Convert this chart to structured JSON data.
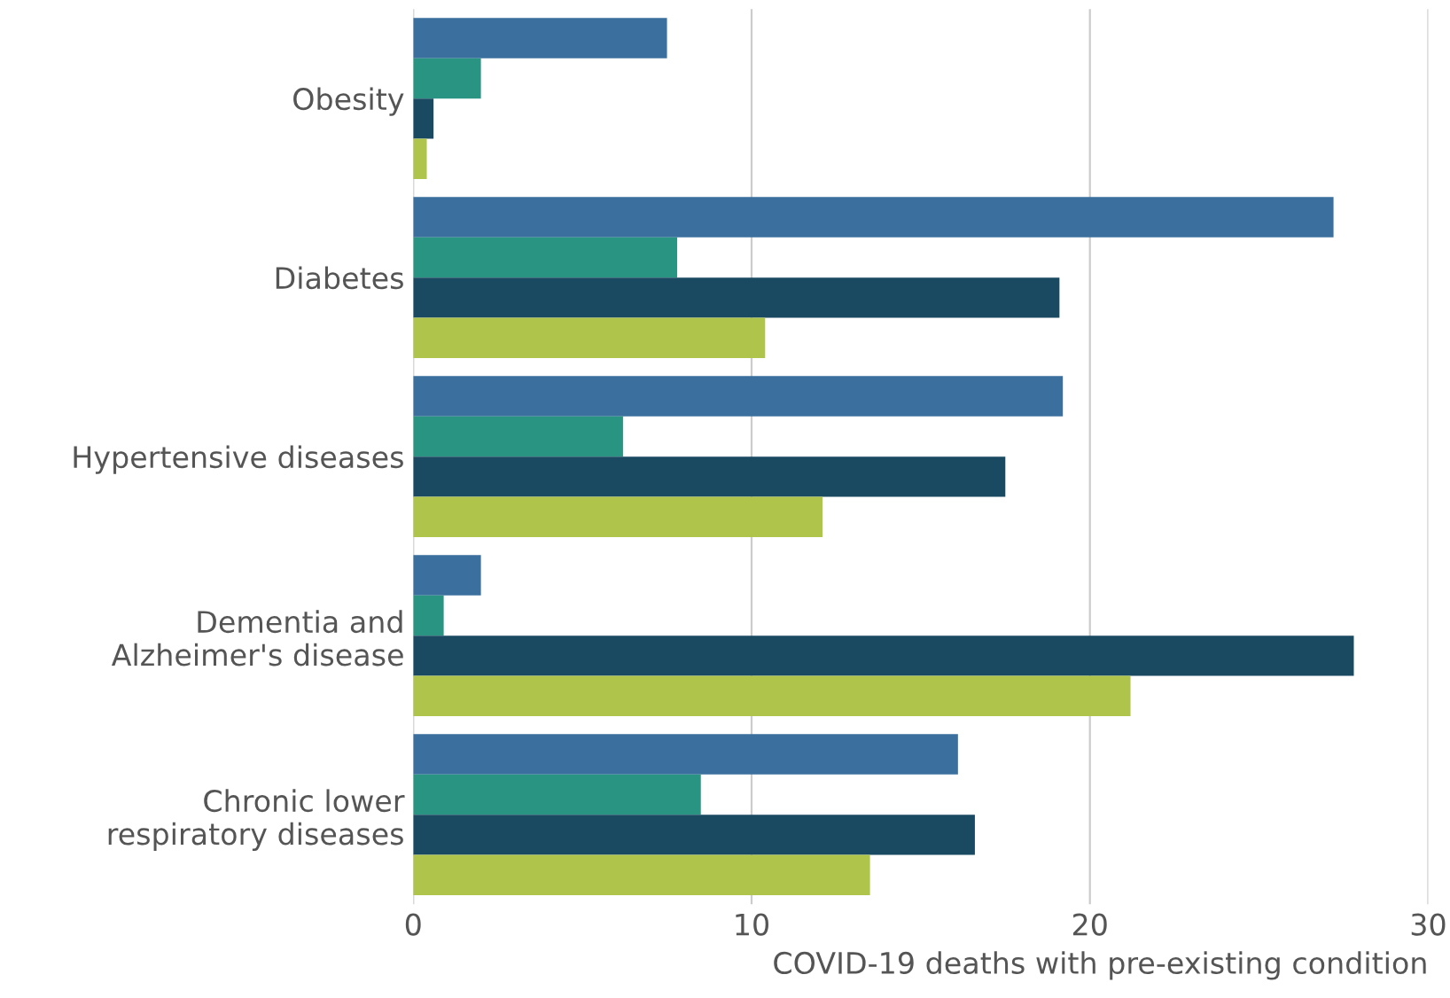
{
  "chart_data": {
    "type": "bar",
    "orientation": "horizontal",
    "xlabel": "COVID-19 deaths with pre-existing condition",
    "categories": [
      "Obesity",
      "Diabetes",
      "Hypertensive diseases",
      "Dementia and\nAlzheimer's disease",
      "Chronic lower\nrespiratory diseases"
    ],
    "series": [
      {
        "color": "#3a6f9e",
        "values": [
          7.5,
          27.2,
          19.2,
          2.0,
          16.1
        ]
      },
      {
        "color": "#2a9482",
        "values": [
          2.0,
          7.8,
          6.2,
          0.9,
          8.5
        ]
      },
      {
        "color": "#1a4a62",
        "values": [
          0.6,
          19.1,
          17.5,
          27.8,
          16.6
        ]
      },
      {
        "color": "#afc44a",
        "values": [
          0.4,
          10.4,
          12.1,
          21.2,
          13.5
        ]
      }
    ],
    "xlim": [
      0,
      30
    ],
    "xticks": [
      0,
      10,
      20,
      30
    ],
    "grid": "x",
    "legend": false
  }
}
